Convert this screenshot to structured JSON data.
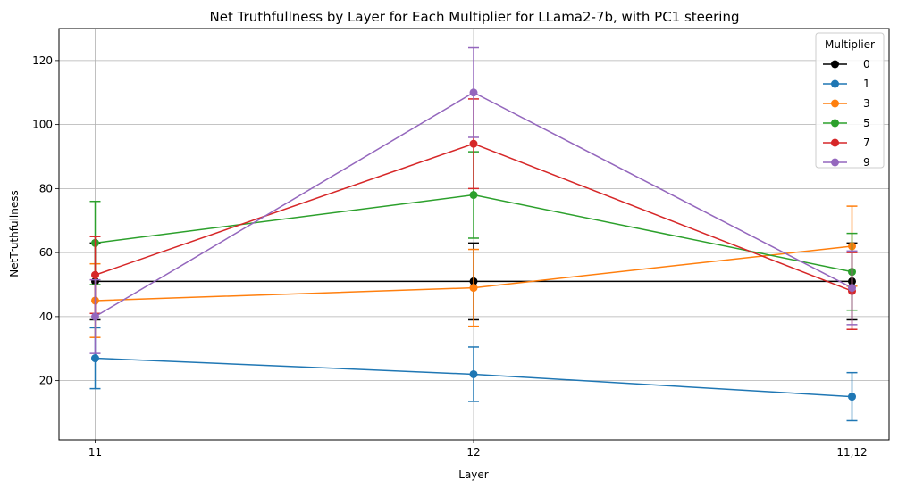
{
  "chart_data": {
    "type": "line",
    "title": "Net Truthfullness by Layer for Each Multiplier for LLama2-7b, with PC1 steering",
    "xlabel": "Layer",
    "ylabel": "NetTruthfullness",
    "categories": [
      "11",
      "12",
      "11,12"
    ],
    "ylim": [
      1.5,
      130
    ],
    "yticks": [
      20,
      40,
      60,
      80,
      100,
      120
    ],
    "grid": true,
    "legend": {
      "title": "Multiplier",
      "placement": "top-right"
    },
    "series": [
      {
        "name": "0",
        "color": "#000000",
        "values": [
          51,
          51,
          51
        ],
        "errors": [
          12,
          12,
          12
        ]
      },
      {
        "name": "1",
        "color": "#1f77b4",
        "values": [
          27,
          22,
          15
        ],
        "errors": [
          9.5,
          8.5,
          7.5
        ]
      },
      {
        "name": "3",
        "color": "#ff7f0e",
        "values": [
          45,
          49,
          62
        ],
        "errors": [
          11.5,
          12,
          12.5
        ]
      },
      {
        "name": "5",
        "color": "#2ca02c",
        "values": [
          63,
          78,
          54
        ],
        "errors": [
          13,
          13.5,
          12
        ]
      },
      {
        "name": "7",
        "color": "#d62728",
        "values": [
          53,
          94,
          48
        ],
        "errors": [
          12,
          14,
          12
        ]
      },
      {
        "name": "9",
        "color": "#9467bd",
        "values": [
          40,
          110,
          49
        ],
        "errors": [
          11.5,
          14,
          11.5
        ]
      }
    ]
  }
}
